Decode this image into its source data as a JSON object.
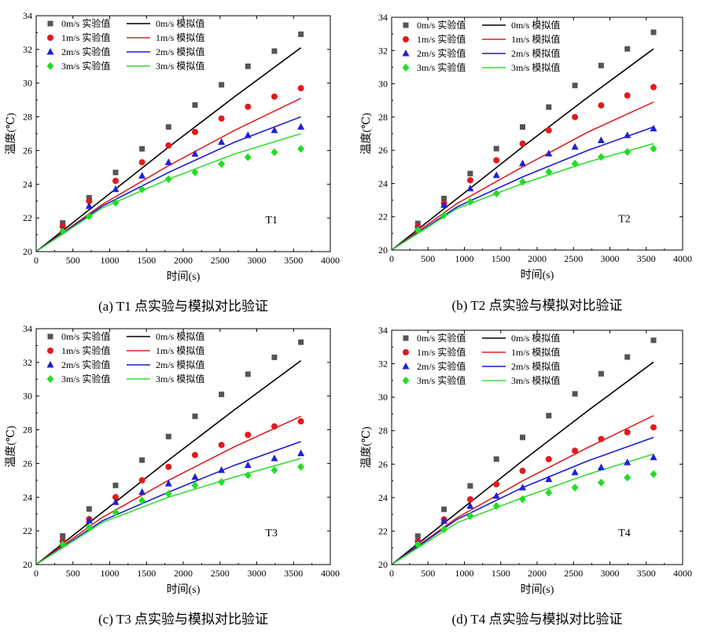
{
  "chart_data": [
    {
      "type": "scatter",
      "panel_label": "T1",
      "caption": "(a) T1 点实验与模拟对比验证",
      "xlabel": "时间(s)",
      "ylabel": "温度(℃)",
      "xlim": [
        0,
        4000
      ],
      "ylim": [
        20,
        34
      ],
      "xticks": [
        0,
        500,
        1000,
        1500,
        2000,
        2500,
        3000,
        3500,
        4000
      ],
      "yticks": [
        20,
        22,
        24,
        26,
        28,
        30,
        32,
        34
      ],
      "legend_position": "top-left",
      "grid": false,
      "series": [
        {
          "name": "0m/s 实验值",
          "kind": "marker",
          "marker": "square",
          "color": "#555555",
          "x": [
            360,
            720,
            1080,
            1440,
            1800,
            2160,
            2520,
            2880,
            3240,
            3600
          ],
          "y": [
            21.7,
            23.2,
            24.7,
            26.1,
            27.4,
            28.7,
            29.9,
            31.0,
            31.9,
            32.9
          ]
        },
        {
          "name": "1m/s 实验值",
          "kind": "marker",
          "marker": "circle",
          "color": "#e41a1c",
          "x": [
            360,
            720,
            1080,
            1440,
            1800,
            2160,
            2520,
            2880,
            3240,
            3600
          ],
          "y": [
            21.5,
            23.0,
            24.2,
            25.3,
            26.3,
            27.1,
            27.9,
            28.6,
            29.2,
            29.7
          ]
        },
        {
          "name": "2m/s 实验值",
          "kind": "marker",
          "marker": "triangle",
          "color": "#1f1fd8",
          "x": [
            360,
            720,
            1080,
            1440,
            1800,
            2160,
            2520,
            2880,
            3240,
            3600
          ],
          "y": [
            21.3,
            22.7,
            23.7,
            24.5,
            25.3,
            25.8,
            26.5,
            26.9,
            27.2,
            27.4
          ]
        },
        {
          "name": "3m/s 实验值",
          "kind": "marker",
          "marker": "diamond",
          "color": "#22dd22",
          "x": [
            360,
            720,
            1080,
            1440,
            1800,
            2160,
            2520,
            2880,
            3240,
            3600
          ],
          "y": [
            21.2,
            22.1,
            22.9,
            23.7,
            24.3,
            24.7,
            25.2,
            25.6,
            25.9,
            26.1
          ]
        },
        {
          "name": "0m/s 模拟值",
          "kind": "line",
          "color": "#000000",
          "x": [
            0,
            900,
            1800,
            2700,
            3600
          ],
          "y": [
            20.0,
            23.1,
            26.2,
            29.2,
            32.1
          ]
        },
        {
          "name": "1m/s 模拟值",
          "kind": "line",
          "color": "#dd2222",
          "x": [
            0,
            900,
            1800,
            2700,
            3600
          ],
          "y": [
            20.0,
            22.8,
            25.1,
            27.2,
            29.1
          ]
        },
        {
          "name": "2m/s 模拟值",
          "kind": "line",
          "color": "#1a1adc",
          "x": [
            0,
            900,
            1800,
            2700,
            3600
          ],
          "y": [
            20.0,
            22.7,
            24.7,
            26.5,
            28.0
          ]
        },
        {
          "name": "3m/s 模拟值",
          "kind": "line",
          "color": "#33dd33",
          "x": [
            0,
            900,
            1800,
            2700,
            3600
          ],
          "y": [
            20.0,
            22.6,
            24.3,
            25.8,
            27.0
          ]
        }
      ]
    },
    {
      "type": "scatter",
      "panel_label": "T2",
      "caption": "(b) T2 点实验与模拟对比验证",
      "xlabel": "时间(s)",
      "ylabel": "温度(℃)",
      "xlim": [
        0,
        4000
      ],
      "ylim": [
        20,
        34
      ],
      "xticks": [
        0,
        500,
        1000,
        1500,
        2000,
        2500,
        3000,
        3500,
        4000
      ],
      "yticks": [
        20,
        22,
        24,
        26,
        28,
        30,
        32,
        34
      ],
      "legend_position": "top-left",
      "grid": false,
      "series": [
        {
          "name": "0m/s 实验值",
          "kind": "marker",
          "marker": "square",
          "color": "#555555",
          "x": [
            360,
            720,
            1080,
            1440,
            1800,
            2160,
            2520,
            2880,
            3240,
            3600
          ],
          "y": [
            21.6,
            23.1,
            24.6,
            26.1,
            27.4,
            28.6,
            29.9,
            31.1,
            32.1,
            33.1
          ]
        },
        {
          "name": "1m/s 实验值",
          "kind": "marker",
          "marker": "circle",
          "color": "#e41a1c",
          "x": [
            360,
            720,
            1080,
            1440,
            1800,
            2160,
            2520,
            2880,
            3240,
            3600
          ],
          "y": [
            21.4,
            22.8,
            24.2,
            25.4,
            26.4,
            27.2,
            28.0,
            28.7,
            29.3,
            29.8
          ]
        },
        {
          "name": "2m/s 实验值",
          "kind": "marker",
          "marker": "triangle",
          "color": "#1f1fd8",
          "x": [
            360,
            720,
            1080,
            1440,
            1800,
            2160,
            2520,
            2880,
            3240,
            3600
          ],
          "y": [
            21.3,
            22.7,
            23.7,
            24.5,
            25.2,
            25.8,
            26.2,
            26.6,
            26.9,
            27.3
          ]
        },
        {
          "name": "3m/s 实验值",
          "kind": "marker",
          "marker": "diamond",
          "color": "#22dd22",
          "x": [
            360,
            720,
            1080,
            1440,
            1800,
            2160,
            2520,
            2880,
            3240,
            3600
          ],
          "y": [
            21.2,
            22.1,
            22.9,
            23.4,
            24.1,
            24.7,
            25.2,
            25.6,
            25.9,
            26.1
          ]
        },
        {
          "name": "0m/s 模拟值",
          "kind": "line",
          "color": "#000000",
          "x": [
            0,
            900,
            1800,
            2700,
            3600
          ],
          "y": [
            20.0,
            23.1,
            26.2,
            29.2,
            32.1
          ]
        },
        {
          "name": "1m/s 模拟值",
          "kind": "line",
          "color": "#dd2222",
          "x": [
            0,
            900,
            1800,
            2700,
            3600
          ],
          "y": [
            20.0,
            22.8,
            25.0,
            27.1,
            28.9
          ]
        },
        {
          "name": "2m/s 模拟值",
          "kind": "line",
          "color": "#1a1adc",
          "x": [
            0,
            900,
            1800,
            2700,
            3600
          ],
          "y": [
            20.0,
            22.6,
            24.4,
            26.0,
            27.4
          ]
        },
        {
          "name": "3m/s 模拟值",
          "kind": "line",
          "color": "#33dd33",
          "x": [
            0,
            900,
            1800,
            2700,
            3600
          ],
          "y": [
            20.0,
            22.5,
            24.0,
            25.3,
            26.4
          ]
        }
      ]
    },
    {
      "type": "scatter",
      "panel_label": "T3",
      "caption": "(c) T3 点实验与模拟对比验证",
      "xlabel": "时间(s)",
      "ylabel": "温度(℃)",
      "xlim": [
        0,
        4000
      ],
      "ylim": [
        20,
        34
      ],
      "xticks": [
        0,
        500,
        1000,
        1500,
        2000,
        2500,
        3000,
        3500,
        4000
      ],
      "yticks": [
        20,
        22,
        24,
        26,
        28,
        30,
        32,
        34
      ],
      "legend_position": "top-left",
      "grid": false,
      "series": [
        {
          "name": "0m/s 实验值",
          "kind": "marker",
          "marker": "square",
          "color": "#555555",
          "x": [
            360,
            720,
            1080,
            1440,
            1800,
            2160,
            2520,
            2880,
            3240,
            3600
          ],
          "y": [
            21.7,
            23.3,
            24.7,
            26.2,
            27.6,
            28.8,
            30.1,
            31.3,
            32.3,
            33.2
          ]
        },
        {
          "name": "1m/s 实验值",
          "kind": "marker",
          "marker": "circle",
          "color": "#e41a1c",
          "x": [
            360,
            720,
            1080,
            1440,
            1800,
            2160,
            2520,
            2880,
            3240,
            3600
          ],
          "y": [
            21.4,
            22.7,
            24.0,
            25.0,
            25.8,
            26.5,
            27.1,
            27.7,
            28.2,
            28.5
          ]
        },
        {
          "name": "2m/s 实验值",
          "kind": "marker",
          "marker": "triangle",
          "color": "#1f1fd8",
          "x": [
            360,
            720,
            1080,
            1440,
            1800,
            2160,
            2520,
            2880,
            3240,
            3600
          ],
          "y": [
            21.3,
            22.6,
            23.7,
            24.3,
            24.8,
            25.2,
            25.6,
            25.9,
            26.3,
            26.6
          ]
        },
        {
          "name": "3m/s 实验值",
          "kind": "marker",
          "marker": "diamond",
          "color": "#22dd22",
          "x": [
            360,
            720,
            1080,
            1440,
            1800,
            2160,
            2520,
            2880,
            3240,
            3600
          ],
          "y": [
            21.2,
            22.2,
            23.1,
            23.8,
            24.2,
            24.7,
            24.9,
            25.3,
            25.6,
            25.8
          ]
        },
        {
          "name": "0m/s 模拟值",
          "kind": "line",
          "color": "#000000",
          "x": [
            0,
            900,
            1800,
            2700,
            3600
          ],
          "y": [
            20.0,
            23.1,
            26.2,
            29.2,
            32.1
          ]
        },
        {
          "name": "1m/s 模拟值",
          "kind": "line",
          "color": "#dd2222",
          "x": [
            0,
            900,
            1800,
            2700,
            3600
          ],
          "y": [
            20.0,
            22.8,
            25.0,
            27.0,
            28.8
          ]
        },
        {
          "name": "2m/s 模拟值",
          "kind": "line",
          "color": "#1a1adc",
          "x": [
            0,
            900,
            1800,
            2700,
            3600
          ],
          "y": [
            20.0,
            22.6,
            24.3,
            25.9,
            27.3
          ]
        },
        {
          "name": "3m/s 模拟值",
          "kind": "line",
          "color": "#33dd33",
          "x": [
            0,
            900,
            1800,
            2700,
            3600
          ],
          "y": [
            20.0,
            22.5,
            24.0,
            25.2,
            26.3
          ]
        }
      ]
    },
    {
      "type": "scatter",
      "panel_label": "T4",
      "caption": "(d) T4 点实验与模拟对比验证",
      "xlabel": "时间(s)",
      "ylabel": "温度(℃)",
      "xlim": [
        0,
        4000
      ],
      "ylim": [
        20,
        34
      ],
      "xticks": [
        0,
        500,
        1000,
        1500,
        2000,
        2500,
        3000,
        3500,
        4000
      ],
      "yticks": [
        20,
        22,
        24,
        26,
        28,
        30,
        32,
        34
      ],
      "legend_position": "top-left",
      "grid": false,
      "series": [
        {
          "name": "0m/s 实验值",
          "kind": "marker",
          "marker": "square",
          "color": "#555555",
          "x": [
            360,
            720,
            1080,
            1440,
            1800,
            2160,
            2520,
            2880,
            3240,
            3600
          ],
          "y": [
            21.7,
            23.3,
            24.7,
            26.3,
            27.6,
            28.9,
            30.2,
            31.4,
            32.4,
            33.4
          ]
        },
        {
          "name": "1m/s 实验值",
          "kind": "marker",
          "marker": "circle",
          "color": "#e41a1c",
          "x": [
            360,
            720,
            1080,
            1440,
            1800,
            2160,
            2520,
            2880,
            3240,
            3600
          ],
          "y": [
            21.4,
            22.7,
            23.9,
            24.8,
            25.6,
            26.3,
            26.8,
            27.5,
            27.9,
            28.2
          ]
        },
        {
          "name": "2m/s 实验值",
          "kind": "marker",
          "marker": "triangle",
          "color": "#1f1fd8",
          "x": [
            360,
            720,
            1080,
            1440,
            1800,
            2160,
            2520,
            2880,
            3240,
            3600
          ],
          "y": [
            21.3,
            22.6,
            23.5,
            24.1,
            24.6,
            25.1,
            25.5,
            25.8,
            26.1,
            26.4
          ]
        },
        {
          "name": "3m/s 实验值",
          "kind": "marker",
          "marker": "diamond",
          "color": "#22dd22",
          "x": [
            360,
            720,
            1080,
            1440,
            1800,
            2160,
            2520,
            2880,
            3240,
            3600
          ],
          "y": [
            21.2,
            22.1,
            22.9,
            23.5,
            23.9,
            24.3,
            24.6,
            24.9,
            25.2,
            25.4
          ]
        },
        {
          "name": "0m/s 模拟值",
          "kind": "line",
          "color": "#000000",
          "x": [
            0,
            900,
            1800,
            2700,
            3600
          ],
          "y": [
            20.0,
            23.1,
            26.2,
            29.2,
            32.1
          ]
        },
        {
          "name": "1m/s 模拟值",
          "kind": "line",
          "color": "#dd2222",
          "x": [
            0,
            900,
            1800,
            2700,
            3600
          ],
          "y": [
            20.0,
            22.8,
            25.0,
            27.0,
            28.9
          ]
        },
        {
          "name": "2m/s 模拟值",
          "kind": "line",
          "color": "#1a1adc",
          "x": [
            0,
            900,
            1800,
            2700,
            3600
          ],
          "y": [
            20.0,
            22.7,
            24.6,
            26.2,
            27.6
          ]
        },
        {
          "name": "3m/s 模拟值",
          "kind": "line",
          "color": "#33dd33",
          "x": [
            0,
            900,
            1800,
            2700,
            3600
          ],
          "y": [
            20.0,
            22.5,
            24.0,
            25.4,
            26.6
          ]
        }
      ]
    }
  ]
}
